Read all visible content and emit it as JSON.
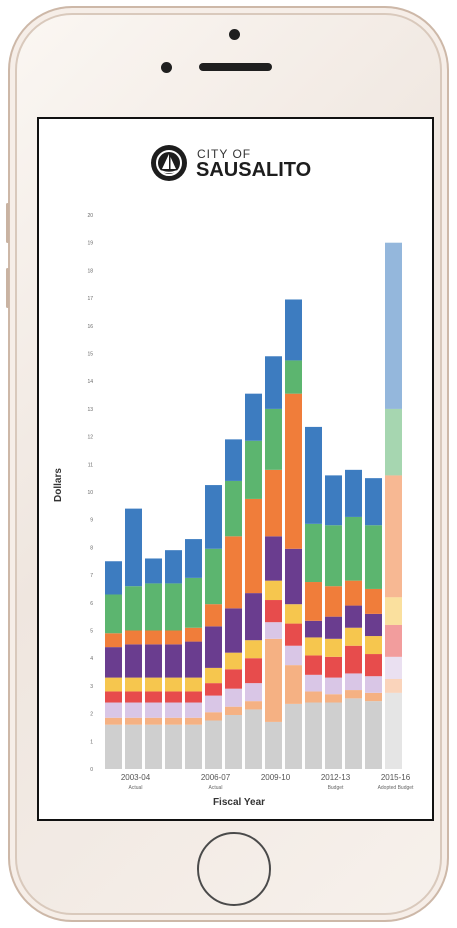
{
  "logo": {
    "small": "CITY OF",
    "big": "SAUSALITO",
    "icon": "sailboat-icon"
  },
  "chart_data": {
    "type": "bar",
    "stacked": true,
    "title": "",
    "xlabel": "Fiscal Year",
    "ylabel": "Dollars",
    "ylim": [
      0,
      20
    ],
    "yticks": [
      0,
      1,
      2,
      3,
      4,
      5,
      6,
      7,
      8,
      9,
      10,
      11,
      12,
      13,
      14,
      15,
      16,
      17,
      18,
      19,
      20
    ],
    "x_tick_labels": [
      {
        "index": 1,
        "label": "2003-04",
        "sub": "Actual"
      },
      {
        "index": 5,
        "label": "2006-07",
        "sub": "Actual"
      },
      {
        "index": 8,
        "label": "2009-10",
        "sub": ""
      },
      {
        "index": 11,
        "label": "2012-13",
        "sub": "Budget"
      },
      {
        "index": 14,
        "label": "2015-16",
        "sub": "Adopted Budget"
      }
    ],
    "categories": [
      "1",
      "2",
      "3",
      "4",
      "5",
      "6",
      "7",
      "8",
      "9",
      "10",
      "11",
      "12",
      "13",
      "14",
      "15"
    ],
    "series": [
      {
        "color": "#cfcfcf",
        "values": [
          1.6,
          1.6,
          1.6,
          1.6,
          1.6,
          1.75,
          1.95,
          2.15,
          1.7,
          2.35,
          2.4,
          2.4,
          2.55,
          2.45,
          2.75
        ]
      },
      {
        "color": "#f5b183",
        "values": [
          0.25,
          0.25,
          0.25,
          0.25,
          0.25,
          0.3,
          0.3,
          0.3,
          3.0,
          1.4,
          0.4,
          0.3,
          0.3,
          0.3,
          0.5
        ]
      },
      {
        "color": "#d9c6e6",
        "values": [
          0.55,
          0.55,
          0.55,
          0.55,
          0.55,
          0.6,
          0.65,
          0.65,
          0.6,
          0.7,
          0.6,
          0.6,
          0.6,
          0.6,
          0.8
        ]
      },
      {
        "color": "#e74c4c",
        "values": [
          0.4,
          0.4,
          0.4,
          0.4,
          0.4,
          0.45,
          0.7,
          0.9,
          0.8,
          0.8,
          0.7,
          0.75,
          1.0,
          0.8,
          1.15
        ]
      },
      {
        "color": "#f6c64e",
        "values": [
          0.5,
          0.5,
          0.5,
          0.5,
          0.5,
          0.55,
          0.6,
          0.65,
          0.7,
          0.7,
          0.65,
          0.65,
          0.65,
          0.65,
          1.0
        ]
      },
      {
        "color": "#6a3d8f",
        "values": [
          1.1,
          1.2,
          1.2,
          1.2,
          1.3,
          1.5,
          1.6,
          1.7,
          1.6,
          2.0,
          0.6,
          0.8,
          0.8,
          0.8,
          0.0
        ]
      },
      {
        "color": "#f07d3a",
        "values": [
          0.5,
          0.5,
          0.5,
          0.5,
          0.5,
          0.8,
          2.6,
          3.4,
          2.4,
          5.6,
          1.4,
          1.1,
          0.9,
          0.9,
          4.4
        ]
      },
      {
        "color": "#5cb56f",
        "values": [
          1.4,
          1.6,
          1.7,
          1.7,
          1.8,
          2.0,
          2.0,
          2.1,
          2.2,
          1.2,
          2.1,
          2.2,
          2.3,
          2.3,
          2.4
        ]
      },
      {
        "color": "#3d7cc0",
        "values": [
          1.2,
          2.8,
          0.9,
          1.2,
          1.4,
          2.3,
          1.5,
          1.7,
          1.9,
          2.2,
          3.5,
          1.8,
          1.7,
          1.7,
          6.0
        ]
      }
    ]
  }
}
